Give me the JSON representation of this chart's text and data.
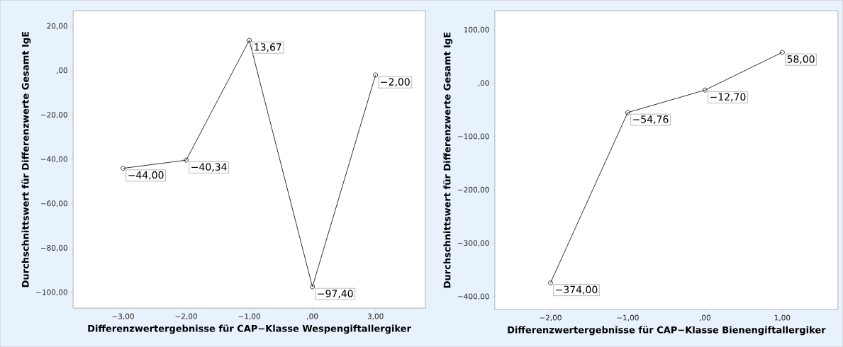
{
  "chart_data": [
    {
      "type": "line",
      "xlabel": "Differenzwertergebnisse für CAP−Klasse Wespengiftallergiker",
      "ylabel": "Durchschnittswert für Differenzwerte Gesamt IgE",
      "categories": [
        "−3,00",
        "−2,00",
        "−1,00",
        ",00",
        "3,00"
      ],
      "values": [
        -44,
        -40.34,
        13.67,
        -97.4,
        -2
      ],
      "value_labels": [
        "−44,00",
        "−40,34",
        "13,67",
        "−97,40",
        "−2,00"
      ],
      "color": "#1a1a1a",
      "marker": "circle",
      "line_style": "solid",
      "ylim": [
        -107,
        27
      ],
      "yticks": [
        {
          "value": 20,
          "label": "20,00"
        },
        {
          "value": 0,
          "label": ",00"
        },
        {
          "value": -20,
          "label": "−20,00"
        },
        {
          "value": -40,
          "label": "−40,00"
        },
        {
          "value": -60,
          "label": "−60,00"
        },
        {
          "value": -80,
          "label": "−80,00"
        },
        {
          "value": -100,
          "label": "−100,00"
        }
      ]
    },
    {
      "type": "line",
      "xlabel": "Differenzwertergebnisse für CAP−Klasse Bienengiftallergiker",
      "ylabel": "Durchschnittswert für Differenzwerte Gesamt IgE",
      "categories": [
        "−2,00",
        "−1,00",
        ",00",
        "1,00"
      ],
      "values": [
        -374,
        -54.76,
        -12.7,
        58
      ],
      "value_labels": [
        "−374,00",
        "−54,76",
        "−12,70",
        "58,00"
      ],
      "color": "#1a1a1a",
      "marker": "circle",
      "line_style": "solid",
      "ylim": [
        -424,
        136
      ],
      "yticks": [
        {
          "value": 100,
          "label": "100,00"
        },
        {
          "value": 0,
          "label": ",00"
        },
        {
          "value": -100,
          "label": "−100,00"
        },
        {
          "value": -200,
          "label": "−200,00"
        },
        {
          "value": -300,
          "label": "−300,00"
        },
        {
          "value": -400,
          "label": "−400,00"
        }
      ]
    }
  ]
}
